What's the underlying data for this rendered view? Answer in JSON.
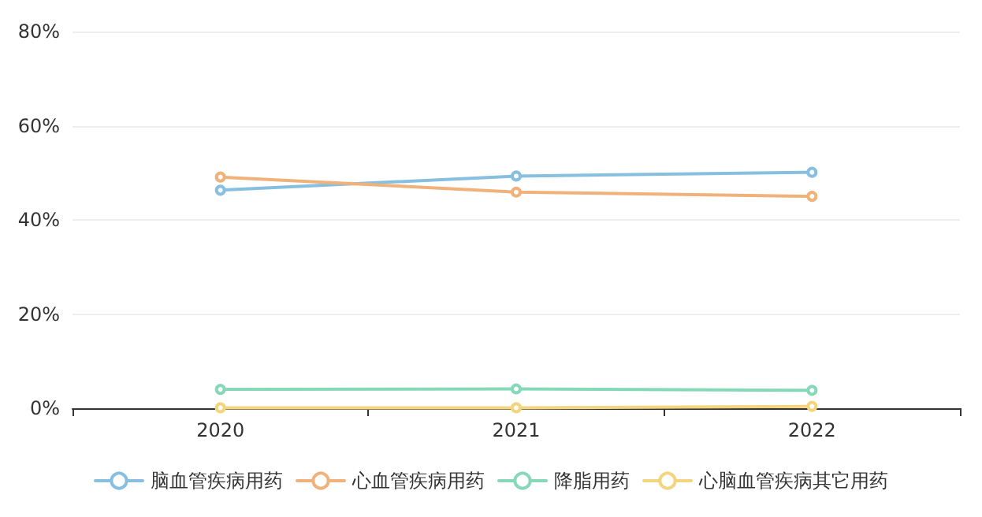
{
  "chart_data": {
    "type": "line",
    "categories": [
      "2020",
      "2021",
      "2022"
    ],
    "series": [
      {
        "name": "脑血管疾病用药",
        "color": "#86bfe0",
        "values": [
          46.3,
          49.3,
          50.1
        ]
      },
      {
        "name": "心血管疾病用药",
        "color": "#f0b27a",
        "values": [
          49.1,
          45.9,
          45.0
        ]
      },
      {
        "name": "降脂用药",
        "color": "#85d8b8",
        "values": [
          4.0,
          4.1,
          3.8
        ]
      },
      {
        "name": "心脑血管疾病其它用药",
        "color": "#f3d57e",
        "values": [
          0.1,
          0.1,
          0.4
        ]
      }
    ],
    "ylim": [
      0,
      80
    ],
    "yticks": [
      {
        "value": 0,
        "label": "0%"
      },
      {
        "value": 20,
        "label": "20%"
      },
      {
        "value": 40,
        "label": "40%"
      },
      {
        "value": 60,
        "label": "60%"
      },
      {
        "value": 80,
        "label": "80%"
      }
    ],
    "grid": "y",
    "legend": "bottom",
    "marker": "circle",
    "line_style": "solid"
  }
}
